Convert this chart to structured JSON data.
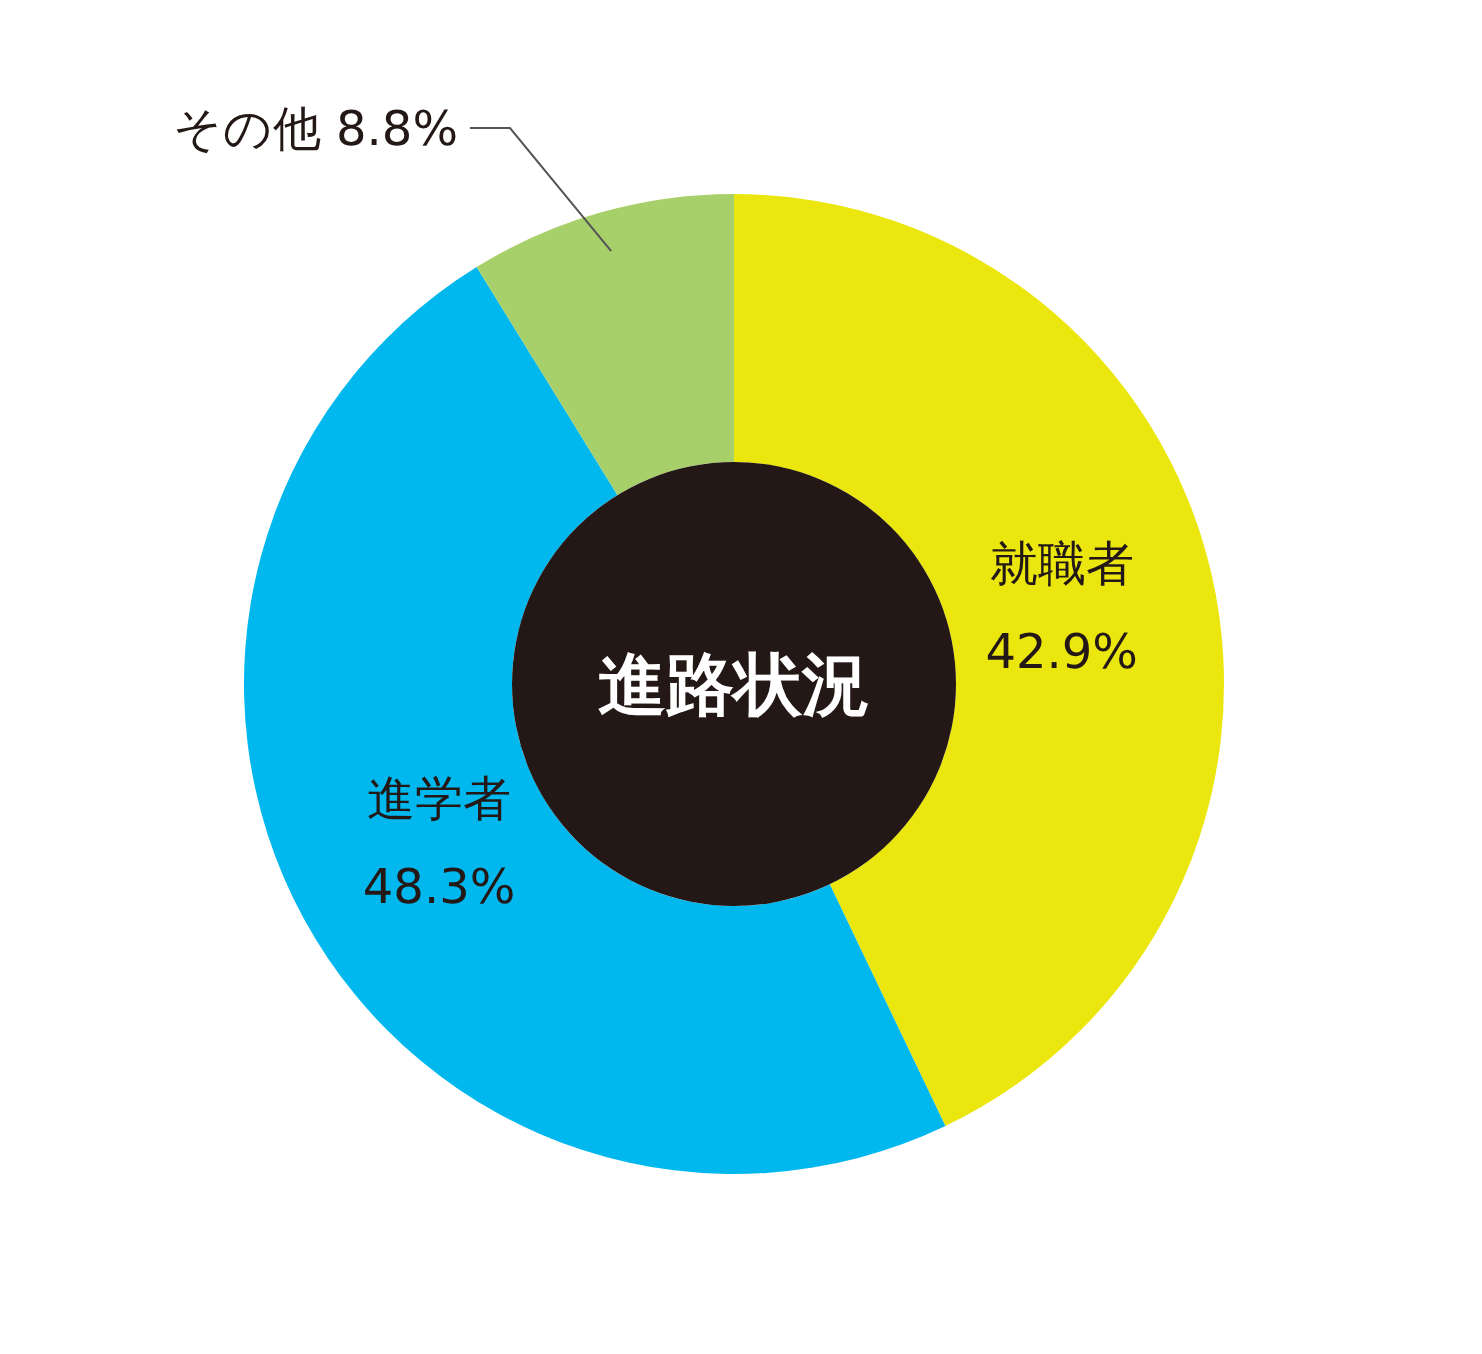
{
  "chart_data": {
    "type": "donut",
    "title": "進路状況",
    "categories": [
      "就職者",
      "進学者",
      "その他"
    ],
    "values": [
      42.9,
      48.3,
      8.8
    ],
    "value_labels": [
      "42.9%",
      "48.3%",
      "8.8%"
    ],
    "colors": [
      "#ebe70e",
      "#00b7ee",
      "#a7d06a"
    ]
  }
}
